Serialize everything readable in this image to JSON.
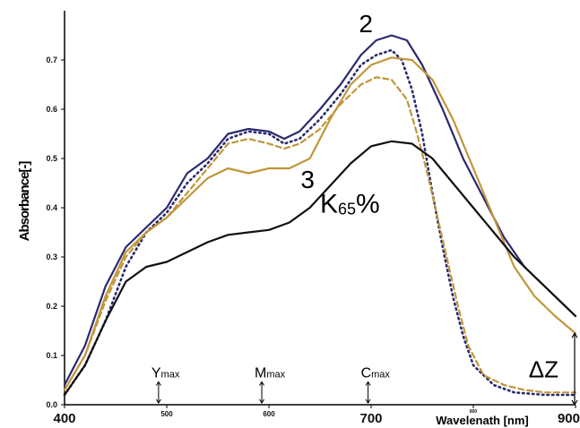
{
  "chart_data": {
    "type": "line",
    "xlabel": "Wavelenath [nm]",
    "ylabel": "Absorbance[-]",
    "xlim": [
      400,
      900
    ],
    "ylim": [
      0.0,
      0.8
    ],
    "x_ticks": [
      {
        "value": 400,
        "label": "400",
        "size": "large"
      },
      {
        "value": 500,
        "label": "500",
        "size": "small"
      },
      {
        "value": 600,
        "label": "600",
        "size": "small"
      },
      {
        "value": 700,
        "label": "700",
        "size": "large"
      },
      {
        "value": 800,
        "label": "800",
        "size": "tiny"
      },
      {
        "value": 900,
        "label": "900",
        "size": "large"
      }
    ],
    "y_ticks": [
      {
        "value": 0.0,
        "label": "0.0"
      },
      {
        "value": 0.1,
        "label": "0.1"
      },
      {
        "value": 0.2,
        "label": "0.2"
      },
      {
        "value": 0.3,
        "label": "0.3"
      },
      {
        "value": 0.4,
        "label": "0.4"
      },
      {
        "value": 0.5,
        "label": "0.5"
      },
      {
        "value": 0.6,
        "label": "0.6"
      },
      {
        "value": 0.7,
        "label": "0.7"
      }
    ],
    "grid": false,
    "series": [
      {
        "id": "curve-2-navy-solid",
        "color": "#2a2a6e",
        "style": "solid",
        "points": [
          [
            400,
            0.04
          ],
          [
            420,
            0.12
          ],
          [
            440,
            0.24
          ],
          [
            460,
            0.32
          ],
          [
            480,
            0.36
          ],
          [
            500,
            0.4
          ],
          [
            520,
            0.47
          ],
          [
            540,
            0.5
          ],
          [
            560,
            0.55
          ],
          [
            580,
            0.56
          ],
          [
            600,
            0.555
          ],
          [
            615,
            0.54
          ],
          [
            630,
            0.555
          ],
          [
            650,
            0.6
          ],
          [
            670,
            0.65
          ],
          [
            690,
            0.71
          ],
          [
            705,
            0.74
          ],
          [
            720,
            0.75
          ],
          [
            735,
            0.74
          ],
          [
            750,
            0.69
          ],
          [
            770,
            0.6
          ],
          [
            790,
            0.5
          ],
          [
            810,
            0.42
          ],
          [
            830,
            0.34
          ],
          [
            850,
            0.28
          ],
          [
            870,
            0.24
          ],
          [
            890,
            0.2
          ],
          [
            900,
            0.18
          ]
        ]
      },
      {
        "id": "curve-navy-dotted",
        "color": "#2a2a6e",
        "style": "dotted",
        "points": [
          [
            400,
            0.02
          ],
          [
            420,
            0.08
          ],
          [
            440,
            0.17
          ],
          [
            460,
            0.28
          ],
          [
            480,
            0.35
          ],
          [
            500,
            0.39
          ],
          [
            520,
            0.45
          ],
          [
            540,
            0.49
          ],
          [
            560,
            0.54
          ],
          [
            580,
            0.555
          ],
          [
            600,
            0.55
          ],
          [
            615,
            0.53
          ],
          [
            630,
            0.54
          ],
          [
            650,
            0.58
          ],
          [
            670,
            0.63
          ],
          [
            690,
            0.69
          ],
          [
            705,
            0.71
          ],
          [
            720,
            0.72
          ],
          [
            730,
            0.7
          ],
          [
            740,
            0.64
          ],
          [
            750,
            0.55
          ],
          [
            760,
            0.43
          ],
          [
            770,
            0.32
          ],
          [
            780,
            0.22
          ],
          [
            790,
            0.14
          ],
          [
            800,
            0.08
          ],
          [
            820,
            0.04
          ],
          [
            840,
            0.025
          ],
          [
            870,
            0.02
          ],
          [
            900,
            0.02
          ]
        ]
      },
      {
        "id": "curve-tan-dashed",
        "color": "#c0963a",
        "style": "dashed",
        "points": [
          [
            400,
            0.03
          ],
          [
            420,
            0.1
          ],
          [
            440,
            0.21
          ],
          [
            460,
            0.3
          ],
          [
            480,
            0.35
          ],
          [
            500,
            0.38
          ],
          [
            520,
            0.43
          ],
          [
            540,
            0.48
          ],
          [
            560,
            0.53
          ],
          [
            580,
            0.54
          ],
          [
            600,
            0.53
          ],
          [
            615,
            0.52
          ],
          [
            630,
            0.53
          ],
          [
            650,
            0.56
          ],
          [
            670,
            0.61
          ],
          [
            690,
            0.65
          ],
          [
            705,
            0.665
          ],
          [
            720,
            0.66
          ],
          [
            735,
            0.62
          ],
          [
            745,
            0.55
          ],
          [
            755,
            0.47
          ],
          [
            765,
            0.38
          ],
          [
            775,
            0.29
          ],
          [
            785,
            0.2
          ],
          [
            795,
            0.12
          ],
          [
            810,
            0.06
          ],
          [
            830,
            0.04
          ],
          [
            850,
            0.03
          ],
          [
            870,
            0.025
          ],
          [
            900,
            0.025
          ]
        ]
      },
      {
        "id": "curve-3-tan-solid",
        "color": "#c0963a",
        "style": "solid",
        "points": [
          [
            400,
            0.03
          ],
          [
            420,
            0.1
          ],
          [
            440,
            0.22
          ],
          [
            460,
            0.31
          ],
          [
            480,
            0.35
          ],
          [
            500,
            0.38
          ],
          [
            520,
            0.42
          ],
          [
            540,
            0.46
          ],
          [
            560,
            0.48
          ],
          [
            580,
            0.47
          ],
          [
            600,
            0.48
          ],
          [
            620,
            0.48
          ],
          [
            640,
            0.5
          ],
          [
            660,
            0.58
          ],
          [
            680,
            0.65
          ],
          [
            700,
            0.69
          ],
          [
            720,
            0.705
          ],
          [
            740,
            0.7
          ],
          [
            760,
            0.66
          ],
          [
            780,
            0.58
          ],
          [
            800,
            0.48
          ],
          [
            820,
            0.38
          ],
          [
            840,
            0.28
          ],
          [
            860,
            0.22
          ],
          [
            880,
            0.18
          ],
          [
            900,
            0.145
          ]
        ]
      },
      {
        "id": "curve-k65-black",
        "color": "#111111",
        "style": "solid",
        "points": [
          [
            400,
            0.02
          ],
          [
            420,
            0.08
          ],
          [
            440,
            0.17
          ],
          [
            460,
            0.25
          ],
          [
            480,
            0.28
          ],
          [
            500,
            0.29
          ],
          [
            520,
            0.31
          ],
          [
            540,
            0.33
          ],
          [
            560,
            0.345
          ],
          [
            580,
            0.35
          ],
          [
            600,
            0.355
          ],
          [
            620,
            0.37
          ],
          [
            640,
            0.4
          ],
          [
            660,
            0.445
          ],
          [
            680,
            0.49
          ],
          [
            700,
            0.525
          ],
          [
            720,
            0.535
          ],
          [
            740,
            0.53
          ],
          [
            760,
            0.5
          ],
          [
            780,
            0.45
          ],
          [
            800,
            0.4
          ],
          [
            820,
            0.35
          ],
          [
            840,
            0.3
          ],
          [
            860,
            0.26
          ],
          [
            880,
            0.22
          ],
          [
            900,
            0.18
          ]
        ]
      }
    ],
    "annotations": [
      {
        "id": "label-2",
        "text": "2",
        "x": 688,
        "y": 0.756,
        "size": 28
      },
      {
        "id": "label-3",
        "text": "3",
        "x": 631,
        "y": 0.44,
        "size": 28
      },
      {
        "id": "label-k65",
        "main": "K",
        "sub": "65",
        "suffix": "%",
        "x": 650,
        "y": 0.39,
        "size": 30
      },
      {
        "id": "label-ymax",
        "main": "Y",
        "sub": "max",
        "x": 492,
        "y": 0.05,
        "arrow_to": 0.0
      },
      {
        "id": "label-mmax",
        "main": "M",
        "sub": "max",
        "x": 593,
        "y": 0.05,
        "arrow_to": 0.0
      },
      {
        "id": "label-cmax",
        "main": "C",
        "sub": "max",
        "x": 697,
        "y": 0.05,
        "arrow_to": 0.0
      },
      {
        "id": "label-deltaz",
        "text": "ΔZ",
        "x": 870,
        "y": 0.07,
        "bracket": [
          0.0,
          0.145
        ]
      }
    ]
  }
}
